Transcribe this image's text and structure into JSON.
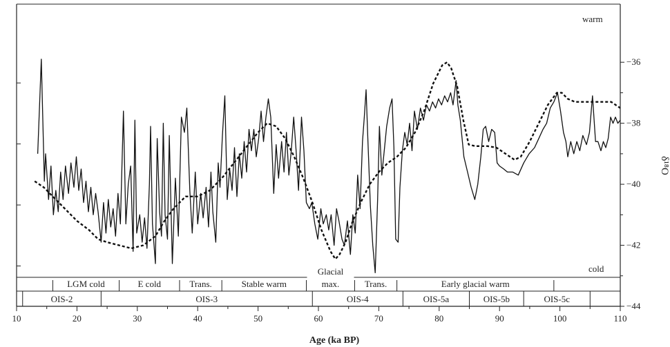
{
  "chart_data": {
    "type": "line",
    "xlabel": "Age (ka BP)",
    "ylabel": "δ¹⁸O",
    "xlim": [
      10,
      110
    ],
    "ylim": [
      -44,
      -35
    ],
    "x_ticks": [
      10,
      20,
      30,
      40,
      50,
      60,
      70,
      80,
      90,
      100,
      110
    ],
    "y_ticks": [
      -36,
      -38,
      -40,
      -42,
      -44
    ],
    "annotations": {
      "warm": "warm",
      "cold": "cold"
    },
    "periods": [
      {
        "label": "LGM cold",
        "start": 16,
        "end": 27
      },
      {
        "label": "E cold",
        "start": 27,
        "end": 37
      },
      {
        "label": "Trans.",
        "start": 37,
        "end": 44
      },
      {
        "label": "Stable warm",
        "start": 44,
        "end": 58
      },
      {
        "label": "Glacial max.",
        "start": 58,
        "end": 66
      },
      {
        "label": "Trans.",
        "start": 66,
        "end": 73
      },
      {
        "label": "Early glacial warm",
        "start": 73,
        "end": 99
      }
    ],
    "stages": [
      {
        "label": "OIS-2",
        "start": 11,
        "end": 24
      },
      {
        "label": "OIS-3",
        "start": 24,
        "end": 59
      },
      {
        "label": "OIS-4",
        "start": 59,
        "end": 74
      },
      {
        "label": "OIS-5a",
        "start": 74,
        "end": 85
      },
      {
        "label": "OIS-5b",
        "start": 85,
        "end": 94
      },
      {
        "label": "OIS-5c",
        "start": 94,
        "end": 105
      }
    ],
    "series": [
      {
        "style": "solid",
        "points": [
          [
            13.5,
            -39.0
          ],
          [
            14.1,
            -35.9
          ],
          [
            14.6,
            -39.9
          ],
          [
            14.8,
            -39.0
          ],
          [
            15.3,
            -40.5
          ],
          [
            15.7,
            -39.4
          ],
          [
            16.1,
            -41.0
          ],
          [
            16.5,
            -40.2
          ],
          [
            16.9,
            -40.9
          ],
          [
            17.3,
            -39.6
          ],
          [
            17.7,
            -40.5
          ],
          [
            18.1,
            -39.4
          ],
          [
            18.6,
            -40.3
          ],
          [
            19.0,
            -39.3
          ],
          [
            19.5,
            -40.1
          ],
          [
            19.9,
            -39.1
          ],
          [
            20.3,
            -40.2
          ],
          [
            20.7,
            -39.5
          ],
          [
            21.1,
            -40.6
          ],
          [
            21.5,
            -39.9
          ],
          [
            21.9,
            -40.9
          ],
          [
            22.3,
            -40.1
          ],
          [
            22.7,
            -41.0
          ],
          [
            23.1,
            -40.3
          ],
          [
            23.5,
            -40.9
          ],
          [
            24.0,
            -41.9
          ],
          [
            24.4,
            -40.6
          ],
          [
            24.8,
            -41.6
          ],
          [
            25.2,
            -40.5
          ],
          [
            25.6,
            -41.4
          ],
          [
            26.0,
            -40.8
          ],
          [
            26.4,
            -41.7
          ],
          [
            26.8,
            -40.3
          ],
          [
            27.2,
            -41.3
          ],
          [
            27.7,
            -37.6
          ],
          [
            28.1,
            -41.3
          ],
          [
            28.5,
            -40.0
          ],
          [
            28.9,
            -39.4
          ],
          [
            29.3,
            -42.2
          ],
          [
            29.6,
            -37.9
          ],
          [
            29.9,
            -41.6
          ],
          [
            30.4,
            -41.0
          ],
          [
            30.8,
            -41.9
          ],
          [
            31.2,
            -41.1
          ],
          [
            31.6,
            -42.1
          ],
          [
            32.0,
            -40.0
          ],
          [
            32.2,
            -38.1
          ],
          [
            32.5,
            -41.3
          ],
          [
            33.0,
            -42.6
          ],
          [
            33.3,
            -38.5
          ],
          [
            33.7,
            -40.9
          ],
          [
            34.0,
            -41.7
          ],
          [
            34.3,
            -38.0
          ],
          [
            34.6,
            -41.0
          ],
          [
            35.0,
            -41.8
          ],
          [
            35.3,
            -38.4
          ],
          [
            35.8,
            -42.6
          ],
          [
            36.3,
            -39.8
          ],
          [
            36.8,
            -41.7
          ],
          [
            37.3,
            -37.8
          ],
          [
            37.8,
            -38.3
          ],
          [
            38.2,
            -37.5
          ],
          [
            38.7,
            -40.2
          ],
          [
            39.1,
            -41.6
          ],
          [
            39.6,
            -39.6
          ],
          [
            40.0,
            -41.3
          ],
          [
            40.5,
            -40.3
          ],
          [
            40.9,
            -41.1
          ],
          [
            41.4,
            -40.1
          ],
          [
            41.8,
            -41.4
          ],
          [
            42.2,
            -39.6
          ],
          [
            42.5,
            -40.9
          ],
          [
            43.0,
            -41.9
          ],
          [
            43.4,
            -39.3
          ],
          [
            43.7,
            -40.1
          ],
          [
            44.1,
            -38.4
          ],
          [
            44.5,
            -37.1
          ],
          [
            44.9,
            -40.5
          ],
          [
            45.3,
            -39.5
          ],
          [
            45.7,
            -40.2
          ],
          [
            46.1,
            -38.8
          ],
          [
            46.5,
            -40.4
          ],
          [
            46.9,
            -39.0
          ],
          [
            47.3,
            -39.8
          ],
          [
            47.7,
            -38.6
          ],
          [
            48.1,
            -39.6
          ],
          [
            48.5,
            -38.2
          ],
          [
            48.9,
            -38.9
          ],
          [
            49.3,
            -38.2
          ],
          [
            49.7,
            -39.1
          ],
          [
            50.1,
            -38.5
          ],
          [
            50.5,
            -37.6
          ],
          [
            50.9,
            -38.6
          ],
          [
            51.3,
            -37.8
          ],
          [
            51.7,
            -37.2
          ],
          [
            52.1,
            -37.8
          ],
          [
            52.6,
            -40.3
          ],
          [
            53.0,
            -38.7
          ],
          [
            53.4,
            -39.8
          ],
          [
            53.9,
            -38.6
          ],
          [
            54.3,
            -39.6
          ],
          [
            54.7,
            -38.3
          ],
          [
            55.1,
            -39.7
          ],
          [
            55.5,
            -38.9
          ],
          [
            55.9,
            -37.8
          ],
          [
            56.3,
            -38.9
          ],
          [
            56.7,
            -40.2
          ],
          [
            57.2,
            -37.8
          ],
          [
            57.6,
            -38.9
          ],
          [
            58.0,
            -40.6
          ],
          [
            58.5,
            -40.8
          ],
          [
            58.9,
            -40.6
          ],
          [
            59.4,
            -41.3
          ],
          [
            59.9,
            -41.8
          ],
          [
            60.4,
            -40.8
          ],
          [
            60.8,
            -41.3
          ],
          [
            61.3,
            -41.0
          ],
          [
            61.7,
            -41.5
          ],
          [
            62.1,
            -41.0
          ],
          [
            62.6,
            -42.0
          ],
          [
            63.0,
            -40.8
          ],
          [
            63.4,
            -41.2
          ],
          [
            63.9,
            -41.8
          ],
          [
            64.3,
            -42.0
          ],
          [
            64.8,
            -41.2
          ],
          [
            65.3,
            -42.3
          ],
          [
            65.7,
            -41.0
          ],
          [
            66.1,
            -41.6
          ],
          [
            66.5,
            -39.7
          ],
          [
            66.9,
            -40.8
          ],
          [
            67.3,
            -38.6
          ],
          [
            67.6,
            -37.8
          ],
          [
            67.9,
            -36.9
          ],
          [
            68.2,
            -38.6
          ],
          [
            68.6,
            -40.7
          ],
          [
            69.0,
            -42.0
          ],
          [
            69.4,
            -42.9
          ],
          [
            69.8,
            -40.5
          ],
          [
            70.1,
            -38.1
          ],
          [
            70.5,
            -39.7
          ],
          [
            70.9,
            -38.9
          ],
          [
            71.3,
            -38.1
          ],
          [
            71.8,
            -37.5
          ],
          [
            72.2,
            -37.2
          ],
          [
            72.5,
            -38.8
          ],
          [
            72.8,
            -41.8
          ],
          [
            73.2,
            -41.9
          ],
          [
            73.5,
            -40.1
          ],
          [
            73.9,
            -38.9
          ],
          [
            74.3,
            -38.3
          ],
          [
            74.7,
            -38.7
          ],
          [
            75.1,
            -38.0
          ],
          [
            75.5,
            -38.9
          ],
          [
            75.9,
            -37.6
          ],
          [
            76.4,
            -38.2
          ],
          [
            76.9,
            -37.5
          ],
          [
            77.4,
            -37.9
          ],
          [
            77.9,
            -37.4
          ],
          [
            78.4,
            -37.6
          ],
          [
            78.9,
            -37.3
          ],
          [
            79.4,
            -37.5
          ],
          [
            79.9,
            -37.2
          ],
          [
            80.4,
            -37.4
          ],
          [
            80.9,
            -37.1
          ],
          [
            81.4,
            -37.3
          ],
          [
            81.9,
            -37.0
          ],
          [
            82.3,
            -37.4
          ],
          [
            82.8,
            -36.6
          ],
          [
            83.1,
            -37.4
          ],
          [
            83.5,
            -37.9
          ],
          [
            84.1,
            -39.1
          ],
          [
            84.7,
            -39.6
          ],
          [
            85.3,
            -40.1
          ],
          [
            85.9,
            -40.5
          ],
          [
            86.4,
            -40.0
          ],
          [
            86.9,
            -39.1
          ],
          [
            87.3,
            -38.2
          ],
          [
            87.7,
            -38.1
          ],
          [
            88.2,
            -38.6
          ],
          [
            88.7,
            -38.2
          ],
          [
            89.2,
            -38.3
          ],
          [
            89.6,
            -39.3
          ],
          [
            90.0,
            -39.4
          ],
          [
            90.7,
            -39.5
          ],
          [
            91.3,
            -39.6
          ],
          [
            92.2,
            -39.6
          ],
          [
            93.1,
            -39.7
          ],
          [
            94.0,
            -39.3
          ],
          [
            94.9,
            -39.0
          ],
          [
            95.8,
            -38.8
          ],
          [
            96.5,
            -38.5
          ],
          [
            97.2,
            -38.2
          ],
          [
            97.8,
            -38.0
          ],
          [
            98.4,
            -37.5
          ],
          [
            99.0,
            -37.3
          ],
          [
            99.6,
            -37.0
          ],
          [
            100.1,
            -37.6
          ],
          [
            100.6,
            -38.3
          ],
          [
            101.0,
            -38.6
          ],
          [
            101.3,
            -39.1
          ],
          [
            101.8,
            -38.6
          ],
          [
            102.3,
            -39.0
          ],
          [
            102.8,
            -38.6
          ],
          [
            103.3,
            -38.9
          ],
          [
            103.8,
            -38.4
          ],
          [
            104.4,
            -38.7
          ],
          [
            104.9,
            -38.3
          ],
          [
            105.4,
            -37.1
          ],
          [
            105.9,
            -38.6
          ],
          [
            106.3,
            -38.6
          ],
          [
            106.8,
            -38.9
          ],
          [
            107.2,
            -38.6
          ],
          [
            107.6,
            -38.8
          ],
          [
            108.0,
            -38.5
          ],
          [
            108.4,
            -37.8
          ],
          [
            108.8,
            -38.0
          ],
          [
            109.2,
            -37.8
          ],
          [
            109.6,
            -38.0
          ],
          [
            110.0,
            -37.9
          ]
        ]
      },
      {
        "style": "dashed",
        "points": [
          [
            13.0,
            -39.9
          ],
          [
            14.5,
            -40.1
          ],
          [
            16.0,
            -40.4
          ],
          [
            18.0,
            -40.8
          ],
          [
            20.0,
            -41.2
          ],
          [
            22.0,
            -41.5
          ],
          [
            23.5,
            -41.8
          ],
          [
            25.0,
            -41.9
          ],
          [
            27.0,
            -42.0
          ],
          [
            29.0,
            -42.1
          ],
          [
            31.0,
            -42.0
          ],
          [
            33.0,
            -41.7
          ],
          [
            34.5,
            -41.2
          ],
          [
            36.0,
            -40.8
          ],
          [
            38.0,
            -40.4
          ],
          [
            40.0,
            -40.4
          ],
          [
            42.0,
            -40.2
          ],
          [
            44.0,
            -39.8
          ],
          [
            46.0,
            -39.3
          ],
          [
            48.0,
            -38.8
          ],
          [
            50.0,
            -38.3
          ],
          [
            51.5,
            -38.0
          ],
          [
            53.0,
            -38.1
          ],
          [
            54.5,
            -38.5
          ],
          [
            56.0,
            -39.1
          ],
          [
            57.5,
            -39.8
          ],
          [
            59.0,
            -40.6
          ],
          [
            60.5,
            -41.5
          ],
          [
            62.0,
            -42.2
          ],
          [
            62.8,
            -42.45
          ],
          [
            63.5,
            -42.3
          ],
          [
            64.5,
            -41.9
          ],
          [
            65.5,
            -41.3
          ],
          [
            67.0,
            -40.6
          ],
          [
            68.5,
            -40.0
          ],
          [
            70.0,
            -39.6
          ],
          [
            71.5,
            -39.3
          ],
          [
            73.0,
            -39.1
          ],
          [
            74.5,
            -38.8
          ],
          [
            76.0,
            -38.3
          ],
          [
            77.5,
            -37.6
          ],
          [
            79.0,
            -36.7
          ],
          [
            80.5,
            -36.1
          ],
          [
            81.3,
            -36.0
          ],
          [
            82.0,
            -36.2
          ],
          [
            83.0,
            -36.8
          ],
          [
            84.0,
            -37.9
          ],
          [
            84.9,
            -38.7
          ],
          [
            86.0,
            -38.75
          ],
          [
            88.0,
            -38.75
          ],
          [
            89.5,
            -38.8
          ],
          [
            91.0,
            -39.0
          ],
          [
            92.5,
            -39.2
          ],
          [
            93.5,
            -39.1
          ],
          [
            95.0,
            -38.6
          ],
          [
            96.5,
            -38.0
          ],
          [
            98.0,
            -37.4
          ],
          [
            99.5,
            -37.0
          ],
          [
            100.3,
            -37.0
          ],
          [
            101.3,
            -37.2
          ],
          [
            102.5,
            -37.3
          ],
          [
            104.0,
            -37.3
          ],
          [
            105.5,
            -37.3
          ],
          [
            107.0,
            -37.3
          ],
          [
            108.5,
            -37.3
          ],
          [
            110.0,
            -37.5
          ]
        ]
      }
    ]
  }
}
